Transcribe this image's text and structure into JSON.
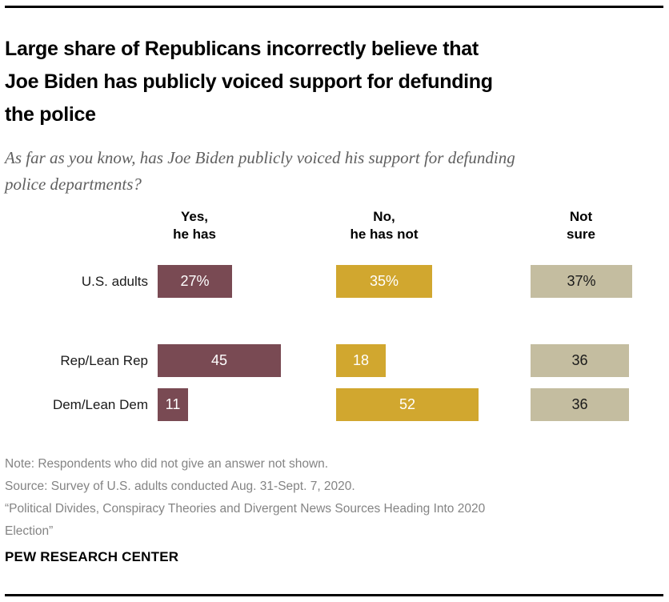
{
  "header": {
    "title": "Large share of Republicans incorrectly believe that\nJoe Biden has publicly voiced support for defunding\nthe police",
    "question": "As far as you know, has Joe Biden publicly voiced his support for defunding\npolice departments?"
  },
  "chart_data": {
    "type": "bar",
    "orientation": "horizontal",
    "value_unit": "percent",
    "categories": [
      "U.S. adults",
      "Rep/Lean Rep",
      "Dem/Lean Dem"
    ],
    "series": [
      {
        "name": "Yes, he has",
        "header": "Yes,\nhe has",
        "values": [
          27,
          45,
          11
        ],
        "labels": [
          "27%",
          "45",
          "11"
        ],
        "color": "#794a53",
        "label_color": "#ffffff"
      },
      {
        "name": "No, he has not",
        "header": "No,\nhe has not",
        "values": [
          35,
          18,
          52
        ],
        "labels": [
          "35%",
          "18",
          "52"
        ],
        "color": "#d1a72f",
        "label_color": "#ffffff"
      },
      {
        "name": "Not sure",
        "header": "Not\nsure",
        "values": [
          37,
          36,
          36
        ],
        "labels": [
          "37%",
          "36",
          "36"
        ],
        "color": "#c4bda0",
        "label_color": "#1a1a1a"
      }
    ],
    "xlim": [
      0,
      60
    ],
    "grid": false,
    "axes_shown": false,
    "legend_position": "column-headers",
    "value_labels_inside_bars": true
  },
  "notes": {
    "note": "Note: Respondents who did not give an answer not shown.",
    "source": "Source: Survey of U.S. adults conducted Aug. 31-Sept. 7, 2020.",
    "report": "“Political Divides, Conspiracy Theories and Divergent News Sources Heading Into 2020\nElection”"
  },
  "footer": {
    "brand": "PEW RESEARCH CENTER"
  }
}
